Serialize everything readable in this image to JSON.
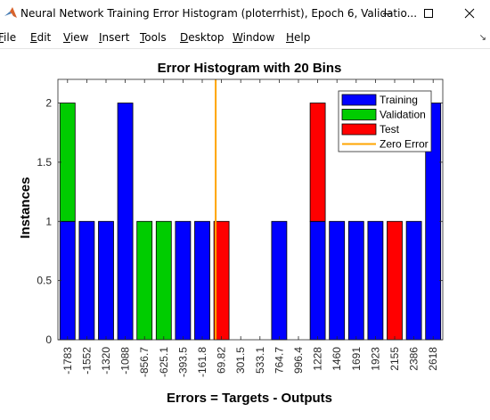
{
  "window": {
    "title": "Neural Network Training Error Histogram (ploterrhist), Epoch 6, Validatio...",
    "minimize_glyph": "—",
    "maximize_glyph": "☐",
    "close_glyph": "✕",
    "dock_glyph": "↘",
    "icon": "matlab-icon"
  },
  "menu": {
    "items": [
      {
        "key": "F",
        "rest": "ile"
      },
      {
        "key": "E",
        "rest": "dit"
      },
      {
        "key": "V",
        "rest": "iew"
      },
      {
        "key": "I",
        "rest": "nsert"
      },
      {
        "key": "T",
        "rest": "ools"
      },
      {
        "key": "D",
        "rest": "esktop"
      },
      {
        "key": "W",
        "rest": "indow"
      },
      {
        "key": "H",
        "rest": "elp"
      }
    ]
  },
  "chart_data": {
    "type": "bar",
    "title": "Error Histogram with 20 Bins",
    "xlabel": "Errors = Targets - Outputs",
    "ylabel": "Instances",
    "ylim": [
      0,
      2.2
    ],
    "yticks": [
      0,
      0.5,
      1,
      1.5,
      2
    ],
    "ytick_labels": [
      "0",
      "0.5",
      "1",
      "1.5",
      "2"
    ],
    "stacked": true,
    "categories": [
      "-1783",
      "-1552",
      "-1320",
      "-1088",
      "-856.7",
      "-625.1",
      "-393.5",
      "-161.8",
      "69.82",
      "301.5",
      "533.1",
      "764.7",
      "996.4",
      "1228",
      "1460",
      "1691",
      "1923",
      "2155",
      "2386",
      "2618"
    ],
    "series": [
      {
        "name": "Training",
        "color": "#0000ff",
        "values": [
          1,
          1,
          1,
          2,
          0,
          0,
          1,
          1,
          0,
          0,
          0,
          1,
          0,
          1,
          1,
          1,
          1,
          0,
          1,
          2
        ]
      },
      {
        "name": "Validation",
        "color": "#00cc00",
        "values": [
          1,
          0,
          0,
          0,
          1,
          1,
          0,
          0,
          0,
          0,
          0,
          0,
          0,
          0,
          0,
          0,
          0,
          0,
          0,
          0
        ]
      },
      {
        "name": "Test",
        "color": "#ff0000",
        "values": [
          0,
          0,
          0,
          0,
          0,
          0,
          0,
          0,
          1,
          0,
          0,
          0,
          0,
          1,
          0,
          0,
          0,
          1,
          0,
          0
        ]
      }
    ],
    "zero_error": {
      "name": "Zero Error",
      "color": "#ffa500",
      "x": 0
    },
    "legend_position": "top-right",
    "grid": false
  }
}
